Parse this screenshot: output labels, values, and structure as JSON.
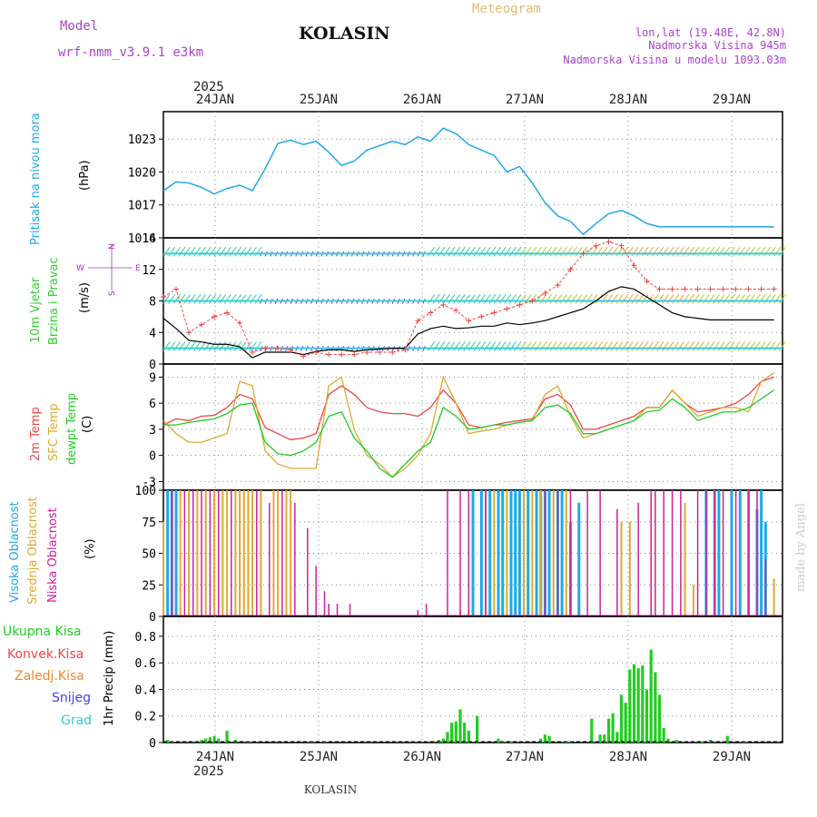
{
  "header": {
    "model_label": "Model",
    "model_name": "wrf-nmm_v3.9.1  e3km",
    "station": "KOLASIN",
    "meteogram": "Meteogram",
    "lonlat": "lon,lat (19.48E, 42.8N)",
    "altitude": "Nadmorska Visina 945m",
    "model_altitude": "Nadmorska Visina u modelu 1093.03m",
    "year_top": "2025",
    "year_bottom": "2025",
    "footer_station": "KOLASIN",
    "watermark": "made by Angel"
  },
  "colors": {
    "pressure": "#1fa8e8",
    "wind_label": "#33cc33",
    "wind_dir": "#aa33cc",
    "t2m": "#ee4444",
    "sfc": "#ddaa33",
    "dewpt": "#22cc22",
    "high_cloud": "#1fa8e8",
    "mid_cloud": "#ddaa33",
    "low_cloud": "#cc2299",
    "precip": "#22cc22",
    "conv": "#ee4444",
    "frz": "#ee8833",
    "snow": "#4444dd",
    "graupel": "#33cccc"
  },
  "chart_data": [
    {
      "type": "line",
      "panel": "pressure",
      "title": "Pritisak na nivou mora",
      "ylabel": "(hPa)",
      "ylim": [
        1014,
        1025.5
      ],
      "yticks": [
        "1023",
        "1020",
        "1017",
        "1014"
      ],
      "yticks_values": [
        1023,
        1020,
        1017,
        1014
      ],
      "x_day_start": 23.5,
      "x_day_end": 29.5,
      "categories": [
        "24JAN",
        "25JAN",
        "26JAN",
        "27JAN",
        "28JAN",
        "29JAN"
      ],
      "x": [
        0,
        3,
        6,
        9,
        12,
        15,
        18,
        21,
        24,
        27,
        30,
        33,
        36,
        39,
        42,
        45,
        48,
        51,
        54,
        57,
        60,
        63,
        66,
        69,
        72,
        75,
        78,
        81,
        84,
        87,
        90,
        93,
        96,
        99,
        102,
        105,
        108,
        111,
        114,
        117,
        120,
        123,
        126,
        129,
        132,
        135,
        138,
        141,
        144
      ],
      "values": [
        1018.3,
        1019.1,
        1019.0,
        1018.6,
        1018.0,
        1018.5,
        1018.8,
        1018.3,
        1020.3,
        1022.6,
        1022.9,
        1022.5,
        1022.8,
        1021.8,
        1020.6,
        1021.0,
        1022.0,
        1022.4,
        1022.8,
        1022.5,
        1023.2,
        1022.8,
        1024.0,
        1023.5,
        1022.5,
        1022.0,
        1021.5,
        1020.0,
        1020.5,
        1019.0,
        1017.2,
        1016.0,
        1015.5,
        1014.3,
        1015.3,
        1016.2,
        1016.5,
        1016.0,
        1015.3,
        1015.0,
        1015.0,
        1015.0,
        1015.0,
        1015.0,
        1015.0,
        1015.0,
        1015.0,
        1015.0,
        1015.0
      ]
    },
    {
      "type": "line",
      "panel": "wind",
      "title": "10m Vjetar",
      "subtitle": "Brzina i Pravac",
      "ylabel": "(m/s)",
      "compass": [
        "W",
        "<",
        "I",
        ">",
        "E"
      ],
      "compass_bottom": "S",
      "compass_top": "N",
      "ylim": [
        0,
        16
      ],
      "yticks": [
        "16",
        "12",
        "8",
        "4",
        "0"
      ],
      "yticks_values": [
        16,
        12,
        8,
        4,
        0
      ],
      "series": [
        {
          "name": "speed",
          "x": [
            0,
            3,
            6,
            9,
            12,
            15,
            18,
            21,
            24,
            27,
            30,
            33,
            36,
            39,
            42,
            45,
            48,
            51,
            54,
            57,
            60,
            63,
            66,
            69,
            72,
            75,
            78,
            81,
            84,
            87,
            90,
            93,
            96,
            99,
            102,
            105,
            108,
            111,
            114,
            117,
            120,
            123,
            126,
            129,
            132,
            135,
            138,
            141,
            144
          ],
          "values": [
            5.8,
            4.5,
            3.0,
            2.8,
            2.5,
            2.5,
            2.2,
            0.8,
            1.5,
            1.5,
            1.5,
            1.2,
            1.6,
            1.8,
            1.8,
            1.6,
            1.8,
            1.9,
            2.0,
            2.0,
            3.8,
            4.5,
            4.8,
            4.5,
            4.6,
            4.8,
            4.8,
            5.2,
            5.0,
            5.2,
            5.5,
            6.0,
            6.5,
            7.0,
            8.0,
            9.2,
            9.8,
            9.5,
            8.5,
            7.5,
            6.5,
            6.0,
            5.8,
            5.6,
            5.6,
            5.6,
            5.6,
            5.6,
            5.6
          ]
        },
        {
          "name": "gust",
          "x": [
            0,
            3,
            6,
            9,
            12,
            15,
            18,
            21,
            24,
            27,
            30,
            33,
            36,
            39,
            42,
            45,
            48,
            51,
            54,
            57,
            60,
            63,
            66,
            69,
            72,
            75,
            78,
            81,
            84,
            87,
            90,
            93,
            96,
            99,
            102,
            105,
            108,
            111,
            114,
            117,
            120,
            123,
            126,
            129,
            132,
            135,
            138,
            141,
            144
          ],
          "values": [
            8.5,
            9.5,
            4.0,
            5.0,
            6.0,
            6.5,
            5.2,
            1.5,
            2.0,
            2.0,
            1.8,
            1.0,
            1.5,
            1.2,
            1.2,
            1.2,
            1.5,
            1.5,
            1.5,
            1.8,
            5.5,
            6.5,
            7.5,
            6.8,
            5.5,
            6.0,
            6.5,
            7.0,
            7.5,
            8.0,
            9.0,
            10.0,
            12.0,
            14.0,
            15.0,
            15.5,
            15.0,
            12.5,
            10.5,
            9.5,
            9.5,
            9.5,
            9.5,
            9.5,
            9.5,
            9.5,
            9.5,
            9.5,
            9.5
          ]
        }
      ]
    },
    {
      "type": "line",
      "panel": "temperature",
      "title": "2m Temp",
      "subtitle": "SFC Temp",
      "subtitle2": "dewpt Temp",
      "ylabel": "(C)",
      "ylim": [
        -4,
        10.5
      ],
      "yticks": [
        "9",
        "6",
        "3",
        "0",
        "-3"
      ],
      "yticks_values": [
        9,
        6,
        3,
        0,
        -3
      ],
      "series": [
        {
          "name": "2m Temp",
          "x": [
            0,
            3,
            6,
            9,
            12,
            15,
            18,
            21,
            24,
            27,
            30,
            33,
            36,
            39,
            42,
            45,
            48,
            51,
            54,
            57,
            60,
            63,
            66,
            69,
            72,
            75,
            78,
            81,
            84,
            87,
            90,
            93,
            96,
            99,
            102,
            105,
            108,
            111,
            114,
            117,
            120,
            123,
            126,
            129,
            132,
            135,
            138,
            141,
            144
          ],
          "values": [
            3.5,
            4.2,
            4.0,
            4.5,
            4.6,
            5.5,
            7.0,
            6.5,
            3.2,
            2.5,
            1.8,
            2.0,
            2.5,
            7.0,
            8.0,
            7.0,
            5.5,
            5.0,
            4.8,
            4.8,
            4.5,
            5.5,
            7.5,
            6.0,
            3.5,
            3.2,
            3.5,
            3.8,
            4.0,
            4.2,
            6.5,
            7.0,
            5.8,
            3.0,
            3.0,
            3.5,
            4.0,
            4.5,
            5.5,
            5.5,
            7.5,
            6.0,
            5.0,
            5.2,
            5.5,
            6.0,
            7.0,
            8.5,
            9.0
          ]
        },
        {
          "name": "SFC Temp",
          "x": [
            0,
            3,
            6,
            9,
            12,
            15,
            18,
            21,
            24,
            27,
            30,
            33,
            36,
            39,
            42,
            45,
            48,
            51,
            54,
            57,
            60,
            63,
            66,
            69,
            72,
            75,
            78,
            81,
            84,
            87,
            90,
            93,
            96,
            99,
            102,
            105,
            108,
            111,
            114,
            117,
            120,
            123,
            126,
            129,
            132,
            135,
            138,
            141,
            144
          ],
          "values": [
            4.0,
            2.5,
            1.5,
            1.5,
            2.0,
            2.5,
            8.5,
            8.0,
            0.5,
            -1.0,
            -1.5,
            -1.5,
            -1.5,
            8.0,
            9.0,
            3.0,
            0.0,
            -1.0,
            -2.5,
            -1.5,
            0.0,
            2.5,
            9.0,
            6.0,
            2.5,
            2.8,
            3.0,
            3.5,
            3.8,
            4.0,
            7.0,
            8.0,
            4.5,
            2.0,
            2.5,
            3.0,
            3.5,
            4.0,
            5.5,
            5.5,
            7.5,
            6.0,
            4.5,
            5.0,
            5.5,
            5.5,
            5.0,
            8.5,
            9.5
          ]
        },
        {
          "name": "dewpt Temp",
          "x": [
            0,
            3,
            6,
            9,
            12,
            15,
            18,
            21,
            24,
            27,
            30,
            33,
            36,
            39,
            42,
            45,
            48,
            51,
            54,
            57,
            60,
            63,
            66,
            69,
            72,
            75,
            78,
            81,
            84,
            87,
            90,
            93,
            96,
            99,
            102,
            105,
            108,
            111,
            114,
            117,
            120,
            123,
            126,
            129,
            132,
            135,
            138,
            141,
            144
          ],
          "values": [
            3.5,
            3.5,
            3.8,
            4.0,
            4.2,
            4.8,
            5.8,
            6.0,
            1.5,
            0.2,
            0.0,
            0.5,
            1.5,
            4.5,
            5.0,
            2.0,
            0.5,
            -1.5,
            -2.5,
            -1.0,
            0.5,
            1.5,
            5.5,
            4.5,
            3.0,
            3.2,
            3.5,
            3.5,
            3.8,
            4.0,
            5.5,
            5.8,
            4.8,
            2.5,
            2.5,
            3.0,
            3.5,
            4.0,
            5.0,
            5.2,
            6.5,
            5.5,
            4.0,
            4.5,
            5.0,
            5.0,
            5.5,
            6.5,
            7.5
          ]
        }
      ]
    },
    {
      "type": "bar",
      "panel": "clouds",
      "title": "Visoka Oblacnost",
      "subtitle": "Srednja Oblacnost",
      "subtitle2": "Niska Oblacnost",
      "ylabel": "(%)",
      "ylim": [
        0,
        100
      ],
      "yticks": [
        "100",
        "75",
        "50",
        "25",
        "0"
      ],
      "yticks_values": [
        100,
        75,
        50,
        25,
        0
      ],
      "series": [
        {
          "name": "Visoka",
          "x": [
            1,
            2,
            3,
            73,
            75,
            77,
            79,
            80,
            82,
            83,
            84,
            86,
            88,
            89,
            90,
            91,
            93,
            94,
            96,
            98,
            128,
            130,
            131,
            134,
            136,
            138,
            140,
            141,
            142
          ],
          "values": [
            100,
            100,
            100,
            100,
            100,
            100,
            100,
            100,
            100,
            100,
            100,
            100,
            100,
            100,
            100,
            100,
            100,
            100,
            75,
            90,
            100,
            100,
            100,
            100,
            100,
            100,
            85,
            100,
            75
          ]
        },
        {
          "name": "Srednja",
          "x": [
            0,
            4,
            6,
            8,
            10,
            12,
            14,
            15,
            17,
            18,
            19,
            20,
            21,
            23,
            26,
            27,
            29,
            30,
            70,
            72,
            76,
            78,
            81,
            85,
            87,
            89,
            92,
            95,
            108,
            110,
            123,
            125,
            130,
            138,
            144
          ],
          "values": [
            75,
            100,
            100,
            100,
            100,
            100,
            100,
            100,
            100,
            100,
            100,
            100,
            100,
            100,
            100,
            100,
            100,
            100,
            5,
            5,
            100,
            100,
            100,
            100,
            100,
            100,
            100,
            100,
            75,
            75,
            90,
            25,
            100,
            100,
            30
          ]
        },
        {
          "name": "Niska",
          "x": [
            2,
            5,
            7,
            9,
            11,
            13,
            16,
            22,
            25,
            28,
            31,
            34,
            36,
            38,
            39,
            41,
            44,
            60,
            62,
            67,
            70,
            72,
            76,
            90,
            93,
            96,
            100,
            103,
            107,
            112,
            115,
            116,
            118,
            120,
            122,
            126,
            128,
            130,
            132,
            135,
            138,
            140,
            142
          ],
          "values": [
            100,
            100,
            100,
            100,
            100,
            100,
            100,
            100,
            90,
            100,
            90,
            70,
            40,
            20,
            10,
            10,
            10,
            5,
            10,
            100,
            100,
            100,
            100,
            100,
            100,
            100,
            100,
            100,
            85,
            90,
            100,
            100,
            100,
            100,
            100,
            100,
            100,
            100,
            100,
            100,
            100,
            100,
            45
          ]
        }
      ]
    },
    {
      "type": "bar",
      "panel": "precip",
      "ylabel": "1hr Precip (mm)",
      "legend": [
        "Ukupna Kisa",
        "Konvek.Kisa",
        "Zaledj.Kisa",
        "Snijeg",
        "Grad"
      ],
      "ylim": [
        0,
        0.95
      ],
      "yticks": [
        "0.8",
        "0.6",
        "0.4",
        "0.2",
        "0"
      ],
      "yticks_values": [
        0.8,
        0.6,
        0.4,
        0.2,
        0
      ],
      "x": [
        1,
        2,
        9,
        10,
        11,
        12,
        13,
        15,
        17,
        20,
        35,
        38,
        65,
        66,
        67,
        68,
        69,
        70,
        71,
        72,
        74,
        79,
        80,
        82,
        89,
        90,
        91,
        95,
        96,
        101,
        103,
        104,
        105,
        106,
        107,
        108,
        109,
        110,
        111,
        112,
        113,
        114,
        115,
        116,
        117,
        118,
        119,
        121,
        127,
        129,
        133,
        137
      ],
      "values": [
        0.02,
        0.01,
        0.02,
        0.03,
        0.04,
        0.05,
        0.03,
        0.09,
        0.02,
        0.01,
        0.01,
        0.01,
        0.02,
        0.03,
        0.08,
        0.15,
        0.16,
        0.25,
        0.15,
        0.09,
        0.2,
        0.03,
        0.01,
        0.01,
        0.03,
        0.06,
        0.05,
        0.01,
        0.01,
        0.18,
        0.06,
        0.06,
        0.18,
        0.22,
        0.08,
        0.36,
        0.3,
        0.55,
        0.59,
        0.56,
        0.58,
        0.4,
        0.7,
        0.53,
        0.36,
        0.11,
        0.03,
        0.02,
        0.01,
        0.02,
        0.05,
        0.01
      ]
    }
  ]
}
